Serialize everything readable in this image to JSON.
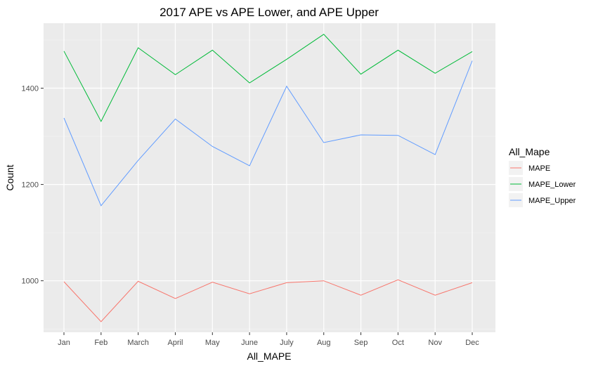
{
  "chart_data": {
    "type": "line",
    "title": "2017 APE vs APE Lower, and APE Upper",
    "xlabel": "All_MAPE",
    "ylabel": "Count",
    "categories": [
      "Jan",
      "Feb",
      "March",
      "April",
      "May",
      "June",
      "July",
      "Aug",
      "Sep",
      "Oct",
      "Nov",
      "Dec"
    ],
    "ylim": [
      893,
      1535
    ],
    "yticks": [
      1000,
      1200,
      1400
    ],
    "grid": true,
    "legend": {
      "title": "All_Mape",
      "placement": "right"
    },
    "series": [
      {
        "name": "MAPE",
        "color": "#F8766D",
        "values": [
          998,
          915,
          999,
          963,
          997,
          973,
          996,
          1000,
          970,
          1002,
          970,
          996
        ]
      },
      {
        "name": "MAPE_Lower",
        "color": "#00BA38",
        "values": [
          1477,
          1331,
          1484,
          1428,
          1479,
          1411,
          1460,
          1512,
          1429,
          1479,
          1431,
          1476
        ]
      },
      {
        "name": "MAPE_Upper",
        "color": "#619CFF",
        "values": [
          1338,
          1156,
          1250,
          1336,
          1279,
          1239,
          1404,
          1287,
          1303,
          1302,
          1262,
          1457
        ]
      }
    ]
  }
}
